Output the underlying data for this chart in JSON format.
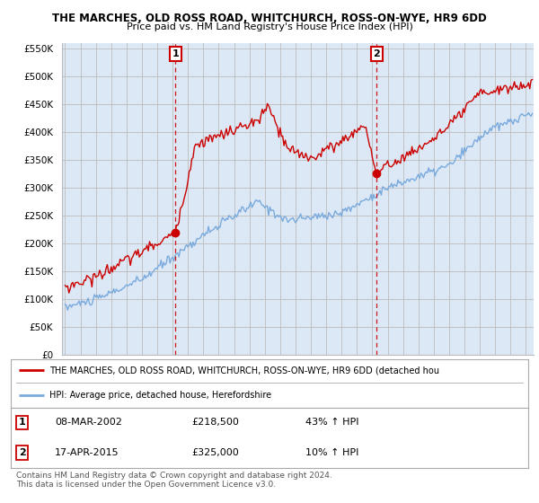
{
  "title": "THE MARCHES, OLD ROSS ROAD, WHITCHURCH, ROSS-ON-WYE, HR9 6DD",
  "subtitle": "Price paid vs. HM Land Registry's House Price Index (HPI)",
  "ylabel_ticks": [
    "£0",
    "£50K",
    "£100K",
    "£150K",
    "£200K",
    "£250K",
    "£300K",
    "£350K",
    "£400K",
    "£450K",
    "£500K",
    "£550K"
  ],
  "ytick_values": [
    0,
    50000,
    100000,
    150000,
    200000,
    250000,
    300000,
    350000,
    400000,
    450000,
    500000,
    550000
  ],
  "ylim": [
    0,
    560000
  ],
  "xlim_start": 1994.8,
  "xlim_end": 2025.5,
  "red_line_color": "#cc0000",
  "blue_line_color": "#7aaadd",
  "marker1_date": 2002.18,
  "marker1_price": 218500,
  "marker2_date": 2015.29,
  "marker2_price": 325000,
  "vline_color": "#cc0000",
  "legend_line1": "THE MARCHES, OLD ROSS ROAD, WHITCHURCH, ROSS-ON-WYE, HR9 6DD (detached hou",
  "legend_line2": "HPI: Average price, detached house, Herefordshire",
  "table_row1": [
    "1",
    "08-MAR-2002",
    "£218,500",
    "43% ↑ HPI"
  ],
  "table_row2": [
    "2",
    "17-APR-2015",
    "£325,000",
    "10% ↑ HPI"
  ],
  "footer_line1": "Contains HM Land Registry data © Crown copyright and database right 2024.",
  "footer_line2": "This data is licensed under the Open Government Licence v3.0.",
  "plot_bg_color": "#dce8f5",
  "grid_color": "#bbbbbb"
}
